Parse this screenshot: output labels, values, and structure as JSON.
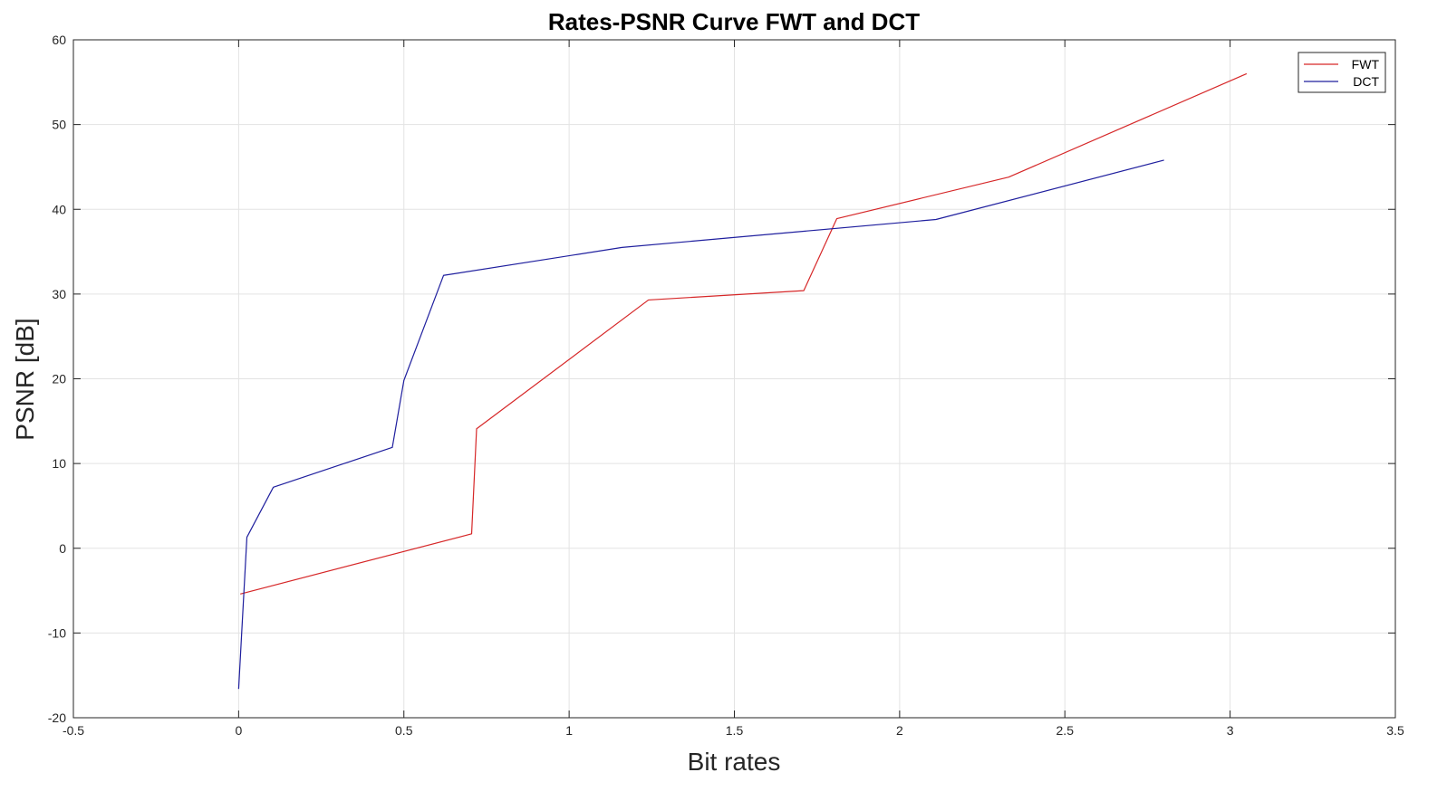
{
  "chart_data": {
    "type": "line",
    "title": "Rates-PSNR Curve FWT and DCT",
    "xlabel": "Bit rates",
    "ylabel": "PSNR [dB]",
    "xlim": [
      -0.5,
      3.5
    ],
    "ylim": [
      -20,
      60
    ],
    "xticks": [
      -0.5,
      0,
      0.5,
      1,
      1.5,
      2,
      2.5,
      3,
      3.5
    ],
    "xtick_labels": [
      "-0.5",
      "0",
      "0.5",
      "1",
      "1.5",
      "2",
      "2.5",
      "3",
      "3.5"
    ],
    "yticks": [
      -20,
      -10,
      0,
      10,
      20,
      30,
      40,
      50,
      60
    ],
    "ytick_labels": [
      "-20",
      "-10",
      "0",
      "10",
      "20",
      "30",
      "40",
      "50",
      "60"
    ],
    "grid": true,
    "legend_position": "top-right",
    "series": [
      {
        "name": "FWT",
        "color": "#d62728",
        "x": [
          0.005,
          0.705,
          0.72,
          1.24,
          1.71,
          1.81,
          2.33,
          3.05
        ],
        "y": [
          -5.4,
          1.7,
          14.1,
          29.3,
          30.4,
          38.9,
          43.8,
          56.0
        ]
      },
      {
        "name": "DCT",
        "color": "#1f1f9e",
        "x": [
          0.0,
          0.025,
          0.105,
          0.465,
          0.5,
          0.62,
          1.16,
          2.11,
          2.8
        ],
        "y": [
          -16.6,
          1.3,
          7.2,
          11.9,
          19.8,
          32.2,
          35.5,
          38.8,
          45.8
        ]
      }
    ]
  }
}
